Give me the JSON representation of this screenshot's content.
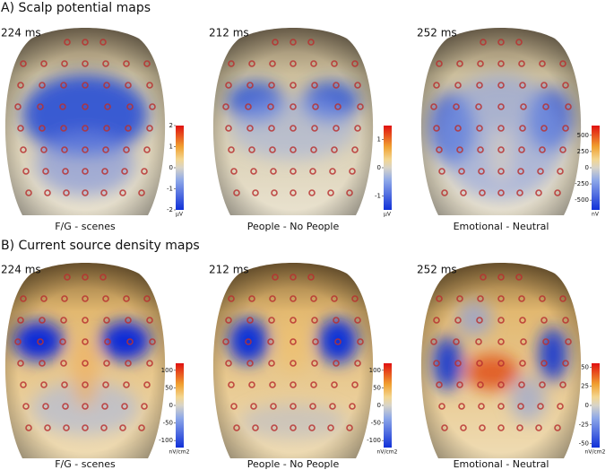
{
  "sections": [
    {
      "title": "A) Scalp potential maps",
      "panels": [
        {
          "time": "224 ms",
          "caption": "F/G - scenes",
          "colorbar": {
            "unit": "μV",
            "lim": [
              -2,
              2
            ],
            "ticks": [
              -2,
              -1,
              0,
              1,
              2
            ]
          }
        },
        {
          "time": "212 ms",
          "caption": "People - No People",
          "colorbar": {
            "unit": "μV",
            "lim": [
              -1.5,
              1.5
            ],
            "ticks": [
              -1,
              0,
              1
            ]
          }
        },
        {
          "time": "252 ms",
          "caption": "Emotional - Neutral",
          "colorbar": {
            "unit": "nV",
            "lim": [
              -650,
              650
            ],
            "ticks": [
              -500,
              -250,
              0,
              250,
              500
            ]
          }
        }
      ]
    },
    {
      "title": "B) Current source density maps",
      "panels": [
        {
          "time": "224 ms",
          "caption": "F/G - scenes",
          "colorbar": {
            "unit": "nV/cm2",
            "lim": [
              -120,
              120
            ],
            "ticks": [
              -100,
              -50,
              0,
              50,
              100
            ]
          }
        },
        {
          "time": "212 ms",
          "caption": "People - No People",
          "colorbar": {
            "unit": "nV/cm2",
            "lim": [
              -120,
              120
            ],
            "ticks": [
              -100,
              -50,
              0,
              50,
              100
            ]
          }
        },
        {
          "time": "252 ms",
          "caption": "Emotional - Neutral",
          "colorbar": {
            "unit": "nV/cm2",
            "lim": [
              -55,
              55
            ],
            "ticks": [
              -50,
              -25,
              0,
              25,
              50
            ]
          }
        }
      ]
    }
  ]
}
